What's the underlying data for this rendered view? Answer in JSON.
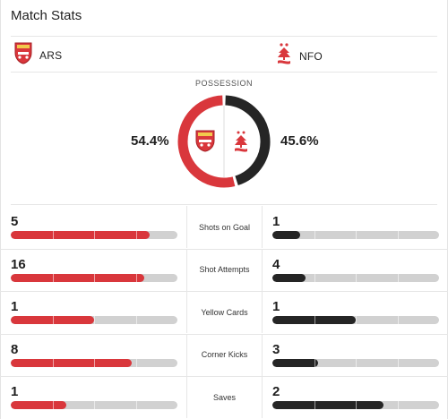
{
  "header": {
    "title": "Match Stats"
  },
  "teams": {
    "home": {
      "abbr": "ARS",
      "color": "#d9373c"
    },
    "away": {
      "abbr": "NFO",
      "color": "#252525"
    }
  },
  "possession": {
    "label": "POSSESSION",
    "home_pct": 54.4,
    "away_pct": 45.6,
    "home_text": "54.4%",
    "away_text": "45.6%"
  },
  "stats": [
    {
      "label": "Shots on Goal",
      "home": "5",
      "away": "1",
      "home_value": 5,
      "away_value": 1
    },
    {
      "label": "Shot Attempts",
      "home": "16",
      "away": "4",
      "home_value": 16,
      "away_value": 4
    },
    {
      "label": "Yellow Cards",
      "home": "1",
      "away": "1",
      "home_value": 1,
      "away_value": 1
    },
    {
      "label": "Corner Kicks",
      "home": "8",
      "away": "3",
      "home_value": 8,
      "away_value": 3
    },
    {
      "label": "Saves",
      "home": "1",
      "away": "2",
      "home_value": 1,
      "away_value": 2
    }
  ],
  "colors": {
    "home_bar": "#d9373c",
    "away_bar": "#252525",
    "empty_bar": "#d1d1d1"
  },
  "icons": {
    "home_crest": "arsenal-crest-icon",
    "away_crest": "nottingham-forest-crest-icon"
  }
}
